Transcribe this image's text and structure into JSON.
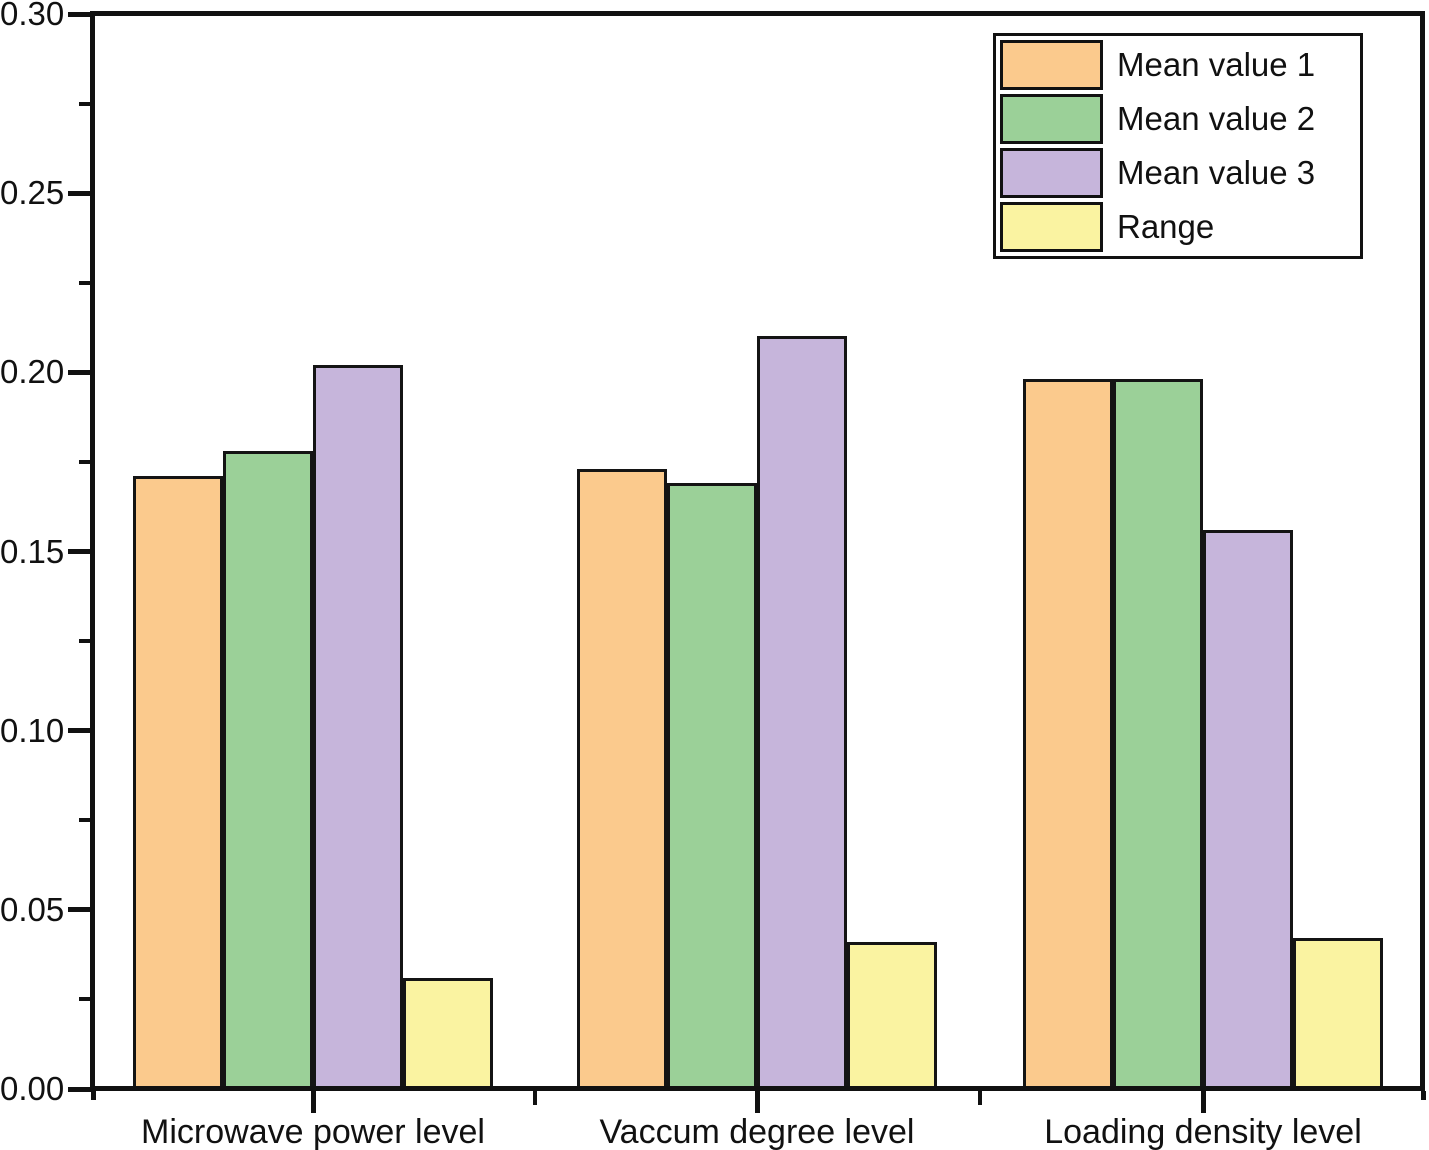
{
  "chart_data": {
    "type": "bar",
    "title": "",
    "xlabel": "",
    "ylabel": "",
    "categories": [
      "Microwave power level",
      "Vaccum degree level",
      "Loading density level"
    ],
    "series": [
      {
        "name": "Mean value 1",
        "color": "#FBCA8D",
        "values": [
          0.171,
          0.173,
          0.198
        ]
      },
      {
        "name": "Mean value 2",
        "color": "#9BD098",
        "values": [
          0.178,
          0.169,
          0.198
        ]
      },
      {
        "name": "Mean value 3",
        "color": "#C6B5DB",
        "values": [
          0.202,
          0.21,
          0.156
        ]
      },
      {
        "name": "Range",
        "color": "#FAF3A1",
        "values": [
          0.031,
          0.041,
          0.042
        ]
      }
    ],
    "ylim": [
      0,
      0.3
    ],
    "y_tick_labels": [
      "0.00",
      "0.05",
      "0.10",
      "0.15",
      "0.20",
      "0.25",
      "0.30"
    ],
    "y_major_step": 0.05,
    "y_minor_step": 0.025,
    "grid": false,
    "legend_position": "top-right",
    "axis_color": "#111111",
    "bar_border_color": "#141414",
    "background_color": "#ffffff"
  }
}
